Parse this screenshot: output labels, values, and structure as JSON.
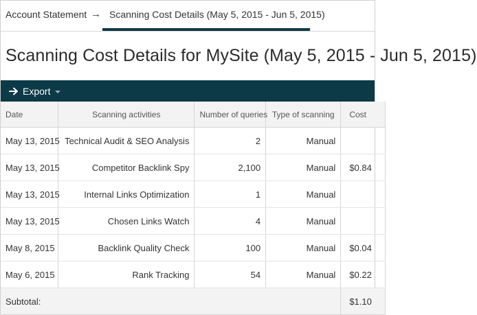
{
  "breadcrumb": {
    "root": "Account Statement",
    "separator": "→",
    "current": "Scanning Cost Details (May 5, 2015 - Jun 5, 2015)"
  },
  "page_title": "Scanning Cost Details for MySite (May 5, 2015 - Jun 5, 2015)",
  "toolbar": {
    "export_label": "Export",
    "export_icon": "arrow-right-icon",
    "background_color": "#0c3a47"
  },
  "table": {
    "headers": [
      "Date",
      "Scanning activities",
      "Number of queries",
      "Type of scanning",
      "Cost"
    ],
    "rows": [
      {
        "date": "May 13, 2015",
        "activity": "Technical Audit & SEO Analysis",
        "queries": "2",
        "type": "Manual",
        "cost": ""
      },
      {
        "date": "May 13, 2015",
        "activity": "Competitor Backlink Spy",
        "queries": "2,100",
        "type": "Manual",
        "cost": "$0.84"
      },
      {
        "date": "May 13, 2015",
        "activity": "Internal Links Optimization",
        "queries": "1",
        "type": "Manual",
        "cost": ""
      },
      {
        "date": "May 13, 2015",
        "activity": "Chosen Links Watch",
        "queries": "4",
        "type": "Manual",
        "cost": ""
      },
      {
        "date": "May 8, 2015",
        "activity": "Backlink Quality Check",
        "queries": "100",
        "type": "Manual",
        "cost": "$0.04"
      },
      {
        "date": "May 6, 2015",
        "activity": "Rank Tracking",
        "queries": "54",
        "type": "Manual",
        "cost": "$0.22"
      }
    ],
    "subtotal_label": "Subtotal:",
    "subtotal_value": "$1.10"
  }
}
